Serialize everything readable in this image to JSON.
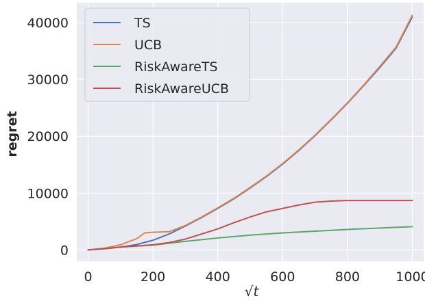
{
  "chart_data": {
    "type": "line",
    "xlabel": "√t",
    "ylabel": "regret",
    "xlim": [
      -35,
      1035
    ],
    "ylim": [
      -2000,
      43500
    ],
    "xticks": [
      0,
      200,
      400,
      600,
      800,
      1000
    ],
    "yticks": [
      0,
      10000,
      20000,
      30000,
      40000
    ],
    "grid": true,
    "legend_position": "top-left",
    "background_color": "#eaeaf2",
    "series": [
      {
        "name": "TS",
        "color": "#4c72b0",
        "x": [
          0,
          50,
          100,
          150,
          200,
          250,
          300,
          350,
          400,
          450,
          500,
          550,
          600,
          650,
          700,
          750,
          800,
          850,
          900,
          950,
          1000
        ],
        "y": [
          0,
          200,
          500,
          950,
          1700,
          2800,
          4200,
          5700,
          7300,
          9000,
          10900,
          12900,
          15100,
          17500,
          20100,
          22900,
          25800,
          28900,
          32100,
          35500,
          41000
        ]
      },
      {
        "name": "UCB",
        "color": "#dd8452",
        "x": [
          0,
          50,
          100,
          150,
          175,
          200,
          250,
          300,
          350,
          400,
          450,
          500,
          550,
          600,
          650,
          700,
          750,
          800,
          850,
          900,
          950,
          1000
        ],
        "y": [
          0,
          300,
          900,
          2000,
          3000,
          3100,
          3200,
          4300,
          5800,
          7400,
          9100,
          11000,
          13000,
          15200,
          17600,
          20200,
          23000,
          25900,
          29000,
          32300,
          35700,
          41300
        ]
      },
      {
        "name": "RiskAwareTS",
        "color": "#55a868",
        "x": [
          0,
          100,
          200,
          300,
          400,
          500,
          600,
          700,
          800,
          900,
          1000
        ],
        "y": [
          0,
          500,
          850,
          1500,
          2100,
          2600,
          3000,
          3300,
          3600,
          3850,
          4100
        ]
      },
      {
        "name": "RiskAwareUCB",
        "color": "#c44e52",
        "x": [
          0,
          50,
          100,
          150,
          200,
          250,
          300,
          350,
          400,
          450,
          500,
          550,
          600,
          650,
          700,
          750,
          800,
          850,
          900,
          1000
        ],
        "y": [
          0,
          200,
          500,
          700,
          900,
          1300,
          1900,
          2800,
          3700,
          4800,
          5800,
          6700,
          7300,
          7900,
          8400,
          8600,
          8700,
          8700,
          8700,
          8700
        ]
      }
    ]
  }
}
